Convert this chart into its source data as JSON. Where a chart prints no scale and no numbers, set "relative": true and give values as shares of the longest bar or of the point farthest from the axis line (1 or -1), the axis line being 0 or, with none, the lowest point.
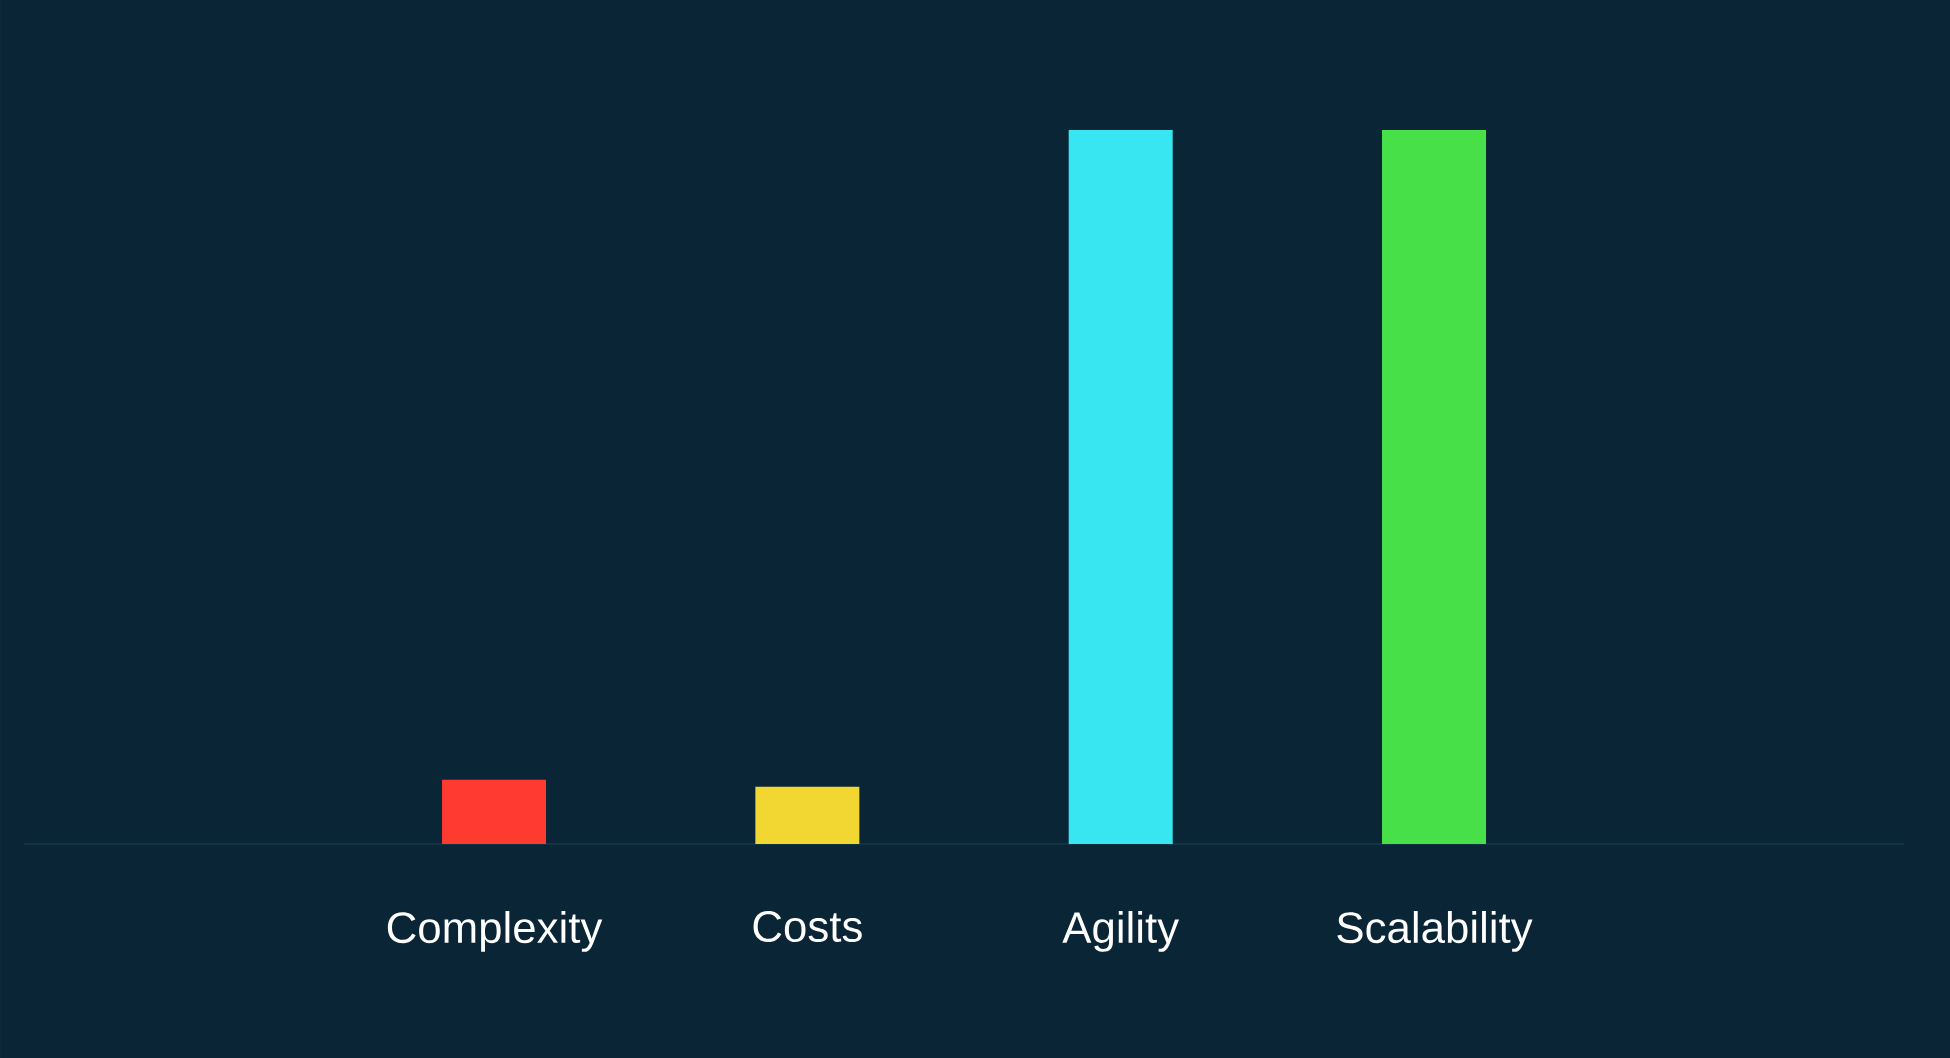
{
  "chart_data": {
    "type": "bar",
    "relative": true,
    "categories": [
      "Complexity",
      "Costs",
      "Agility",
      "Scalability"
    ],
    "values": [
      0.09,
      0.08,
      1,
      1
    ],
    "colors": [
      "#ff3a30",
      "#f2d632",
      "#38e6f2",
      "#48e048"
    ]
  }
}
